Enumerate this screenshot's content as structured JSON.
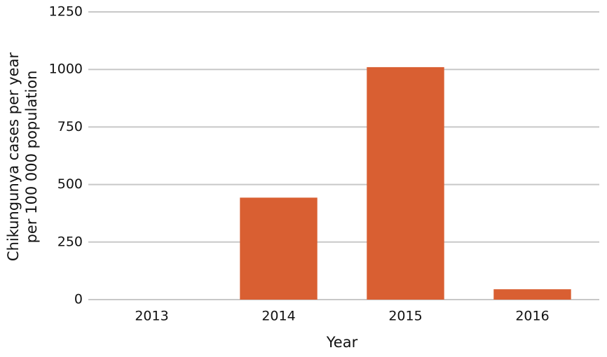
{
  "chart_data": {
    "type": "bar",
    "categories": [
      "2013",
      "2014",
      "2015",
      "2016"
    ],
    "values": [
      0,
      443,
      1010,
      45
    ],
    "color": "#d95f32",
    "ylim": [
      0,
      1250
    ],
    "yticks": [
      0,
      250,
      500,
      750,
      1000,
      1250
    ],
    "grid": true,
    "x_label": "Year",
    "y_label": [
      "Chikungunya cases per year",
      "per 100 000 population"
    ]
  }
}
